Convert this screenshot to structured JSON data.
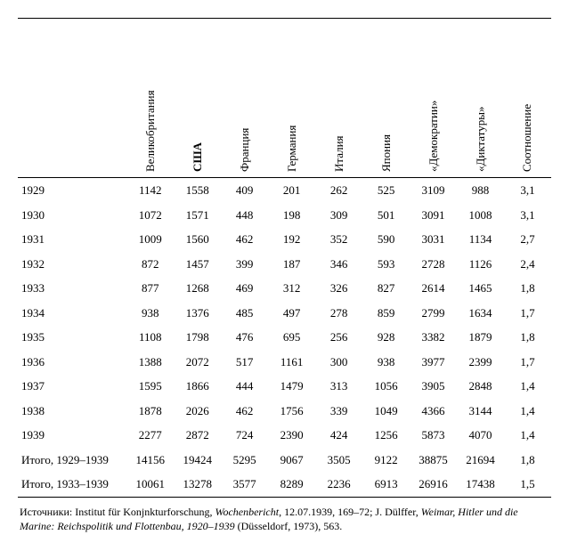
{
  "columns": [
    "Великобритания",
    "США",
    "Франция",
    "Германия",
    "Италия",
    "Япония",
    "«Демократии»",
    "«Диктатуры»",
    "Соотношение"
  ],
  "column_bold": [
    false,
    true,
    false,
    false,
    false,
    false,
    false,
    false,
    false
  ],
  "rows": [
    {
      "label": "1929",
      "cells": [
        "1142",
        "1558",
        "409",
        "201",
        "262",
        "525",
        "3109",
        "988",
        "3,1"
      ]
    },
    {
      "label": "1930",
      "cells": [
        "1072",
        "1571",
        "448",
        "198",
        "309",
        "501",
        "3091",
        "1008",
        "3,1"
      ]
    },
    {
      "label": "1931",
      "cells": [
        "1009",
        "1560",
        "462",
        "192",
        "352",
        "590",
        "3031",
        "1134",
        "2,7"
      ]
    },
    {
      "label": "1932",
      "cells": [
        "872",
        "1457",
        "399",
        "187",
        "346",
        "593",
        "2728",
        "1126",
        "2,4"
      ]
    },
    {
      "label": "1933",
      "cells": [
        "877",
        "1268",
        "469",
        "312",
        "326",
        "827",
        "2614",
        "1465",
        "1,8"
      ]
    },
    {
      "label": "1934",
      "cells": [
        "938",
        "1376",
        "485",
        "497",
        "278",
        "859",
        "2799",
        "1634",
        "1,7"
      ]
    },
    {
      "label": "1935",
      "cells": [
        "1108",
        "1798",
        "476",
        "695",
        "256",
        "928",
        "3382",
        "1879",
        "1,8"
      ]
    },
    {
      "label": "1936",
      "cells": [
        "1388",
        "2072",
        "517",
        "1161",
        "300",
        "938",
        "3977",
        "2399",
        "1,7"
      ]
    },
    {
      "label": "1937",
      "cells": [
        "1595",
        "1866",
        "444",
        "1479",
        "313",
        "1056",
        "3905",
        "2848",
        "1,4"
      ]
    },
    {
      "label": "1938",
      "cells": [
        "1878",
        "2026",
        "462",
        "1756",
        "339",
        "1049",
        "4366",
        "3144",
        "1,4"
      ]
    },
    {
      "label": "1939",
      "cells": [
        "2277",
        "2872",
        "724",
        "2390",
        "424",
        "1256",
        "5873",
        "4070",
        "1,4"
      ]
    },
    {
      "label": "Итого, 1929–1939",
      "cells": [
        "14156",
        "19424",
        "5295",
        "9067",
        "3505",
        "9122",
        "38875",
        "21694",
        "1,8"
      ]
    },
    {
      "label": "Итого, 1933–1939",
      "cells": [
        "10061",
        "13278",
        "3577",
        "8289",
        "2236",
        "6913",
        "26916",
        "17438",
        "1,5"
      ]
    }
  ],
  "source_prefix": "Источники: Institut für Konjnkturforschung, ",
  "source_italic1": "Wochenbericht",
  "source_mid": ", 12.07.1939, 169–72; J. Dülffer, ",
  "source_italic2": "Weimar, Hitler und die Marine: Reichspolitik und Flottenbau, 1920–1939",
  "source_suffix": " (Düsseldorf, 1973), 563."
}
